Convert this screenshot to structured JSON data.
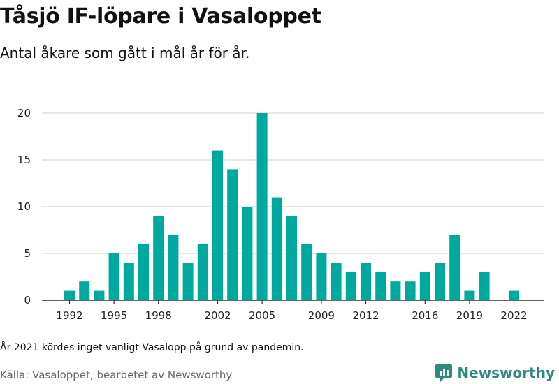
{
  "title": "Tåsjö IF-löpare i Vasaloppet",
  "subtitle": "Antal åkare som gått i mål år för år.",
  "note": "År 2021 kördes inget vanligt Vasalopp på grund av pandemin.",
  "source": "Källa: Vasaloppet, bearbetet av Newsworthy",
  "brand": {
    "name": "Newsworthy",
    "icon": "newsworthy-logo-icon"
  },
  "colors": {
    "bar": "#00a99d",
    "grid": "#d9d9d9",
    "axis": "#333333",
    "brand": "#2e8b7e"
  },
  "chart_data": {
    "type": "bar",
    "title": "Tåsjö IF-löpare i Vasaloppet",
    "xlabel": "",
    "ylabel": "",
    "ylim": [
      0,
      20
    ],
    "yticks": [
      0,
      5,
      10,
      15,
      20
    ],
    "xticks": [
      1992,
      1995,
      1998,
      2002,
      2005,
      2009,
      2012,
      2016,
      2019,
      2022
    ],
    "grid": true,
    "categories": [
      1992,
      1993,
      1994,
      1995,
      1996,
      1997,
      1998,
      1999,
      2000,
      2001,
      2002,
      2003,
      2004,
      2005,
      2006,
      2007,
      2008,
      2009,
      2010,
      2011,
      2012,
      2013,
      2014,
      2015,
      2016,
      2017,
      2018,
      2019,
      2020,
      2021,
      2022
    ],
    "values": [
      1,
      2,
      1,
      5,
      4,
      6,
      9,
      7,
      4,
      6,
      16,
      14,
      10,
      20,
      11,
      9,
      6,
      5,
      4,
      3,
      4,
      3,
      2,
      2,
      3,
      4,
      7,
      1,
      3,
      0,
      1
    ]
  }
}
